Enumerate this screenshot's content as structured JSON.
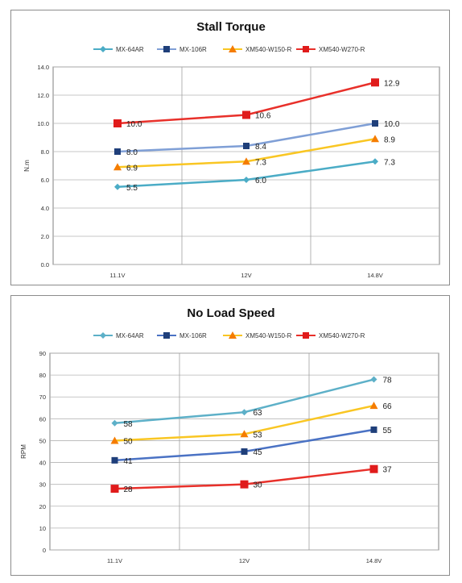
{
  "charts": [
    {
      "id": "torque",
      "chart_data": {
        "type": "line",
        "title": "Stall Torque",
        "ylabel": "N.m",
        "xlabel": "",
        "categories": [
          "11.1V",
          "12V",
          "14.8V"
        ],
        "ylim": [
          0,
          14
        ],
        "yticks": [
          "0.0",
          "2.0",
          "4.0",
          "6.0",
          "8.0",
          "10.0",
          "12.0",
          "14.0"
        ],
        "ytick_values": [
          0,
          2,
          4,
          6,
          8,
          10,
          12,
          14
        ],
        "grid": true,
        "legend": "top",
        "series": [
          {
            "name": "MX-64AR",
            "values": [
              5.5,
              6.0,
              7.3
            ],
            "labels": [
              "5.5",
              "6.0",
              "7.3"
            ],
            "color": "#4bacc6",
            "marker": "diamond"
          },
          {
            "name": "MX-106R",
            "values": [
              8.0,
              8.4,
              10.0
            ],
            "labels": [
              "8.0",
              "8.4",
              "10.0"
            ],
            "color": "#7f9fd6",
            "markerColor": "#1f3f7a",
            "marker": "square"
          },
          {
            "name": "XM540-W150-R",
            "values": [
              6.9,
              7.3,
              8.9
            ],
            "labels": [
              "6.9",
              "7.3",
              "8.9"
            ],
            "color": "#f9c623",
            "markerColor": "#f57c00",
            "marker": "triangle"
          },
          {
            "name": "XM540-W270-R",
            "values": [
              10.0,
              10.6,
              12.9
            ],
            "labels": [
              "10.0",
              "10.6",
              "12.9"
            ],
            "color": "#e8302a",
            "markerColor": "#e01b1b",
            "marker": "bigsquare"
          }
        ]
      }
    },
    {
      "id": "speed",
      "chart_data": {
        "type": "line",
        "title": "No Load Speed",
        "ylabel": "RPM",
        "xlabel": "",
        "categories": [
          "11.1V",
          "12V",
          "14.8V"
        ],
        "ylim": [
          0,
          90
        ],
        "yticks": [
          "0",
          "10",
          "20",
          "30",
          "40",
          "50",
          "60",
          "70",
          "80",
          "90"
        ],
        "ytick_values": [
          0,
          10,
          20,
          30,
          40,
          50,
          60,
          70,
          80,
          90
        ],
        "grid": true,
        "legend": "top",
        "series": [
          {
            "name": "MX-64AR",
            "values": [
              58,
              63,
              78
            ],
            "labels": [
              "58",
              "63",
              "78"
            ],
            "color": "#5db0c8",
            "marker": "diamond"
          },
          {
            "name": "MX-106R",
            "values": [
              41,
              45,
              55
            ],
            "labels": [
              "41",
              "45",
              "55"
            ],
            "color": "#4a72c4",
            "markerColor": "#1f3f7a",
            "marker": "square"
          },
          {
            "name": "XM540-W150-R",
            "values": [
              50,
              53,
              66
            ],
            "labels": [
              "50",
              "53",
              "66"
            ],
            "color": "#f9c623",
            "markerColor": "#f57c00",
            "marker": "triangle"
          },
          {
            "name": "XM540-W270-R",
            "values": [
              28,
              30,
              37
            ],
            "labels": [
              "28",
              "30",
              "37"
            ],
            "color": "#e8302a",
            "markerColor": "#e01b1b",
            "marker": "bigsquare"
          }
        ]
      }
    }
  ]
}
